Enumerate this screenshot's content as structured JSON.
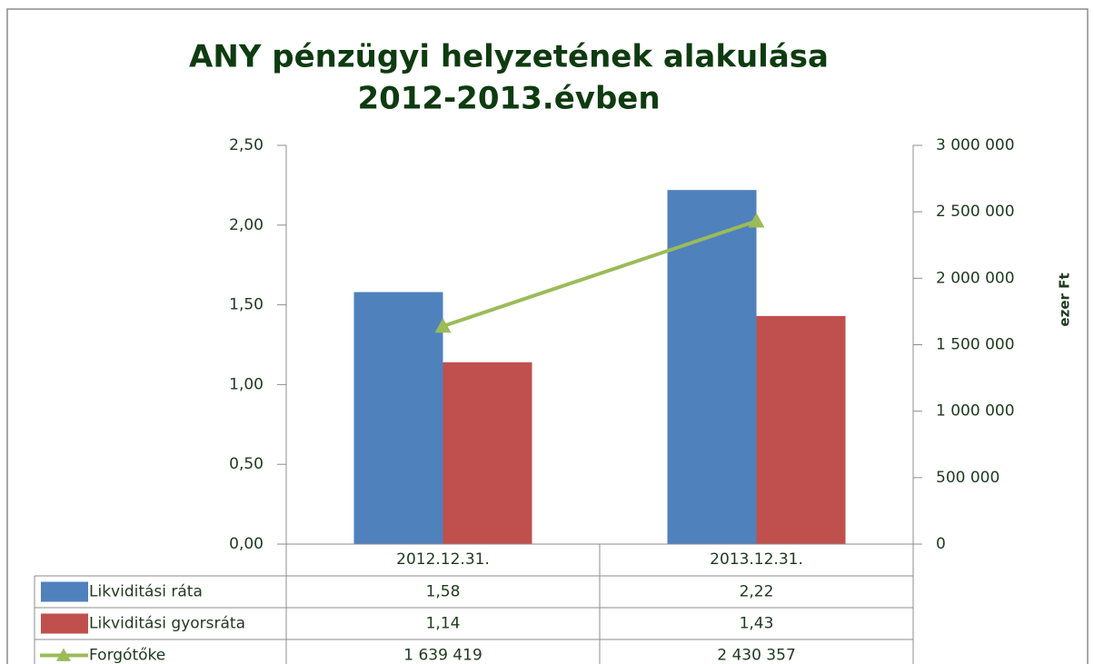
{
  "chart_data": {
    "type": "bar",
    "title": [
      "ANY pénzügyi helyzetének alakulása",
      "2012-2013.évben"
    ],
    "categories": [
      "2012.12.31.",
      "2013.12.31."
    ],
    "series": [
      {
        "name": "Likviditási ráta",
        "color": "#4f81bd",
        "type": "bar",
        "values": [
          1.58,
          2.22
        ],
        "value_labels": [
          "1,58",
          "2,22"
        ]
      },
      {
        "name": "Likviditási gyorsráta",
        "color": "#c0504d",
        "type": "bar",
        "values": [
          1.14,
          1.43
        ],
        "value_labels": [
          "1,14",
          "1,43"
        ]
      },
      {
        "name": "Forgótőke",
        "color": "#9bbb59",
        "type": "line",
        "axis": "y2",
        "values": [
          1639419,
          2430357
        ],
        "value_labels": [
          "1 639 419",
          "2 430 357"
        ]
      }
    ],
    "ylim": [
      0,
      2.5
    ],
    "yticks": [
      {
        "value": 0,
        "label": "0,00"
      },
      {
        "value": 0.5,
        "label": "0,50"
      },
      {
        "value": 1,
        "label": "1,00"
      },
      {
        "value": 1.5,
        "label": "1,50"
      },
      {
        "value": 2,
        "label": "2,00"
      },
      {
        "value": 2.5,
        "label": "2,50"
      }
    ],
    "y2lim": [
      0,
      3000000
    ],
    "y2ticks": [
      0,
      {
        "value": 500000,
        "label": "500 000"
      },
      {
        "value": 1000000,
        "label": "1 000 000"
      },
      {
        "value": 1500000,
        "label": "1 500 000"
      },
      {
        "value": 2000000,
        "label": "2 000 000"
      },
      {
        "value": 2500000,
        "label": "2 500 000"
      },
      {
        "value": 3000000,
        "label": "3 000 000"
      }
    ],
    "y2label": "ezer Ft",
    "grid": false
  }
}
